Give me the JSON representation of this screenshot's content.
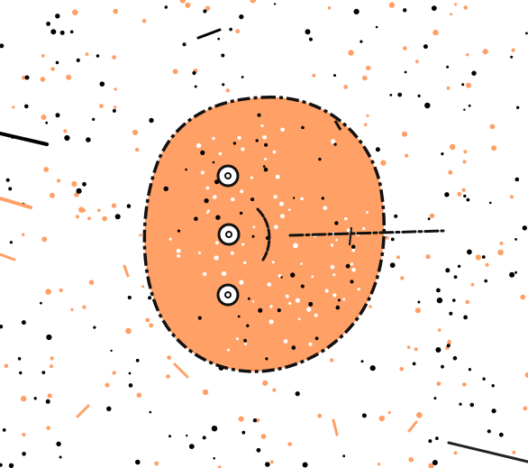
{
  "game": {
    "colors": {
      "background": "#ffffff",
      "cell_fill": "#ffa066",
      "outline": "#111111",
      "black_particle": "#000000",
      "orange_particle": "#ff9f66",
      "white_particle": "#ffffff",
      "trail": "#222222"
    },
    "player_cell": {
      "icon": "orange-blob-cell",
      "dash_style": "dashed-outline"
    },
    "eyes": {
      "count": 3,
      "icon": "ring-eye"
    },
    "mouth": {
      "icon": "curved-arc-mouth"
    },
    "antenna": {
      "icon": "dashed-feeler"
    },
    "particles": {
      "black_count": 150,
      "orange_count": 140,
      "white_inside_count": 80
    }
  }
}
